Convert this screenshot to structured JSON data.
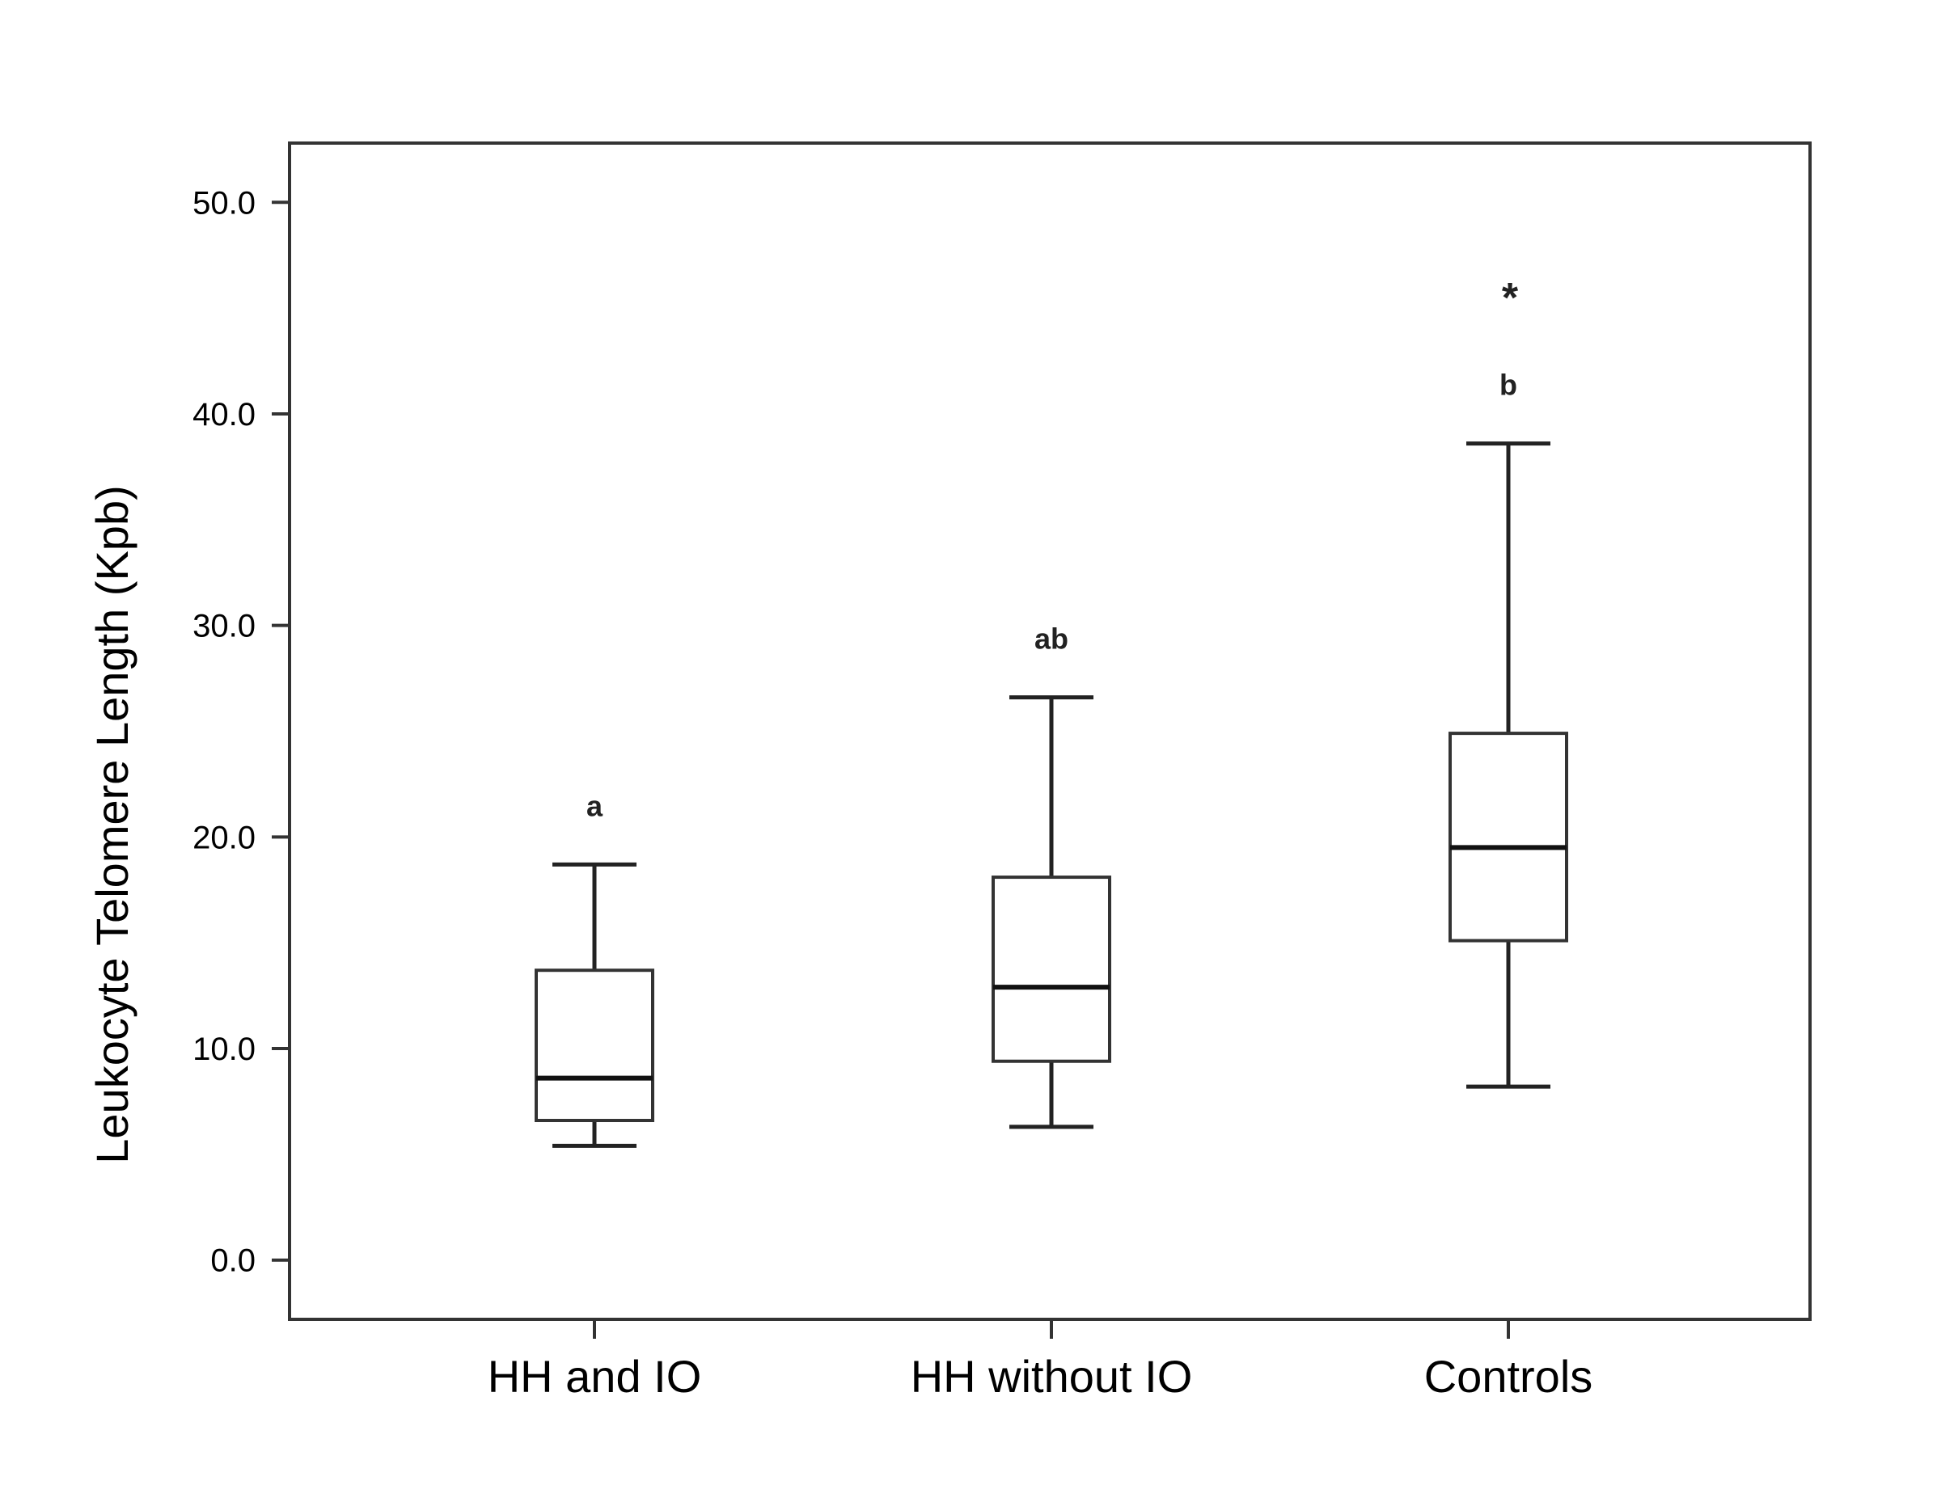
{
  "chart_data": {
    "type": "boxplot",
    "ylabel": "Leukocyte Telomere Length (Kpb)",
    "xlabel": "",
    "ylim": [
      -2.8,
      52.8
    ],
    "yticks": [
      "0.0",
      "10.0",
      "20.0",
      "30.0",
      "40.0",
      "50.0"
    ],
    "ytick_values": [
      0,
      10,
      20,
      30,
      40,
      50
    ],
    "categories": [
      "HH and IO",
      "HH without IO",
      "Controls"
    ],
    "boxes": [
      {
        "category": "HH and IO",
        "min": 5.4,
        "q1": 6.6,
        "median": 8.6,
        "q3": 13.7,
        "max": 18.7,
        "label": "a",
        "outliers": []
      },
      {
        "category": "HH without IO",
        "min": 6.3,
        "q1": 9.4,
        "median": 12.9,
        "q3": 18.1,
        "max": 26.6,
        "label": "ab",
        "outliers": []
      },
      {
        "category": "Controls",
        "min": 8.2,
        "q1": 15.1,
        "median": 19.5,
        "q3": 24.9,
        "max": 38.6,
        "label": "b",
        "outliers": [
          45.8
        ]
      }
    ],
    "outlier_marker": "*",
    "grid": false,
    "legend": "none"
  }
}
